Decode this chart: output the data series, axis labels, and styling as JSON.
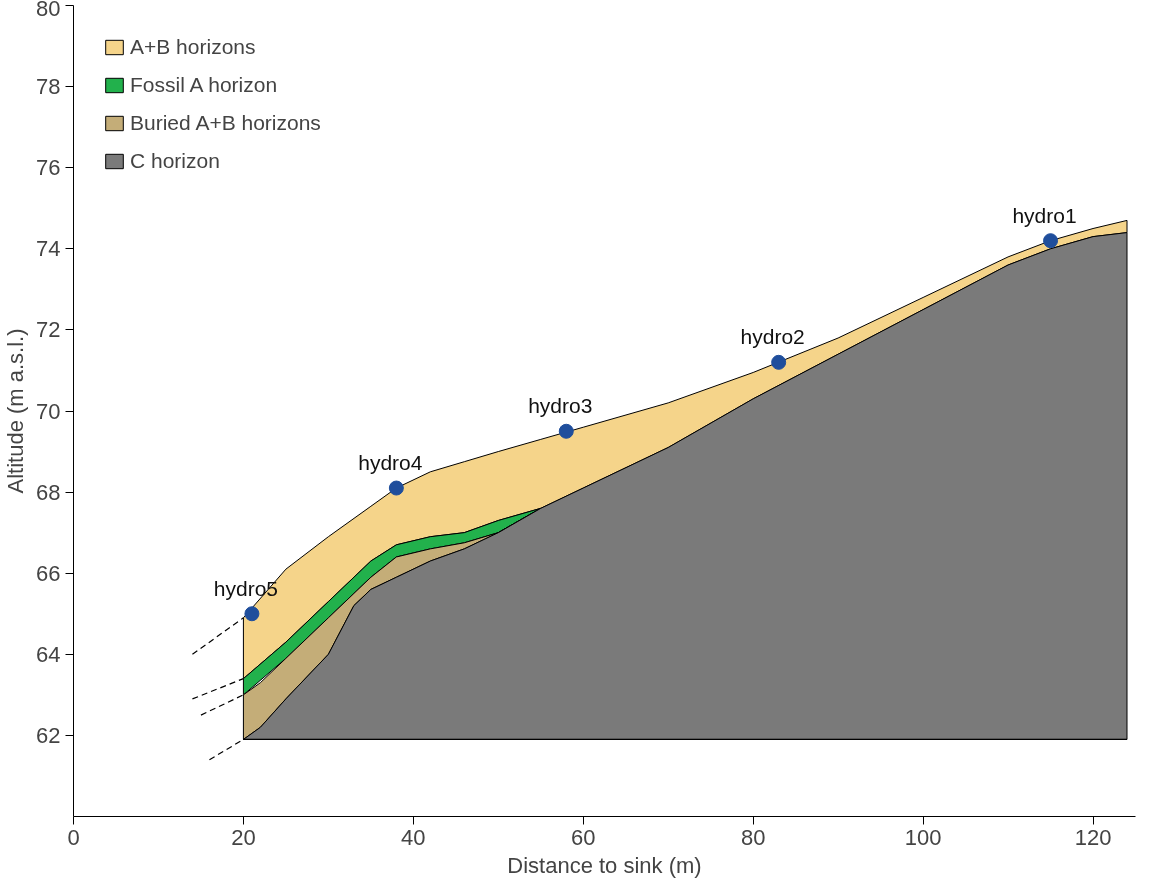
{
  "chart_data": {
    "type": "area",
    "xlabel": "Distance to sink (m)",
    "ylabel": "Altitude (m a.s.l.)",
    "xlim": [
      0,
      125
    ],
    "ylim": [
      60,
      80
    ],
    "xticks": [
      0,
      20,
      40,
      60,
      80,
      100,
      120
    ],
    "yticks": [
      62,
      64,
      66,
      68,
      70,
      72,
      74,
      76,
      78,
      80
    ],
    "grid": false,
    "legend": "top left",
    "series": [
      {
        "name": "A+B horizons",
        "color": "#f5d48a",
        "x": [
          20,
          25,
          30,
          35,
          38,
          42,
          46,
          50,
          55,
          60,
          70,
          80,
          90,
          100,
          110,
          115,
          120,
          124
        ],
        "values": [
          64.9,
          66.1,
          66.9,
          67.65,
          68.1,
          68.5,
          68.75,
          69.0,
          69.3,
          69.6,
          70.2,
          70.95,
          71.8,
          72.8,
          73.8,
          74.2,
          74.5,
          74.7
        ]
      },
      {
        "name": "Fossil A horizon",
        "color": "#22b14c",
        "x": [
          20,
          25,
          30,
          35,
          38,
          42,
          46,
          50,
          55
        ],
        "values": [
          63.4,
          64.3,
          65.3,
          66.3,
          66.7,
          66.9,
          67.0,
          67.3,
          67.6
        ]
      },
      {
        "name": "Buried A+B horizons",
        "color": "#c4ad78",
        "x": [
          20,
          22,
          25,
          30,
          33,
          35,
          38,
          42,
          46,
          50,
          55
        ],
        "values": [
          63.0,
          63.3,
          63.9,
          64.9,
          65.5,
          65.9,
          66.4,
          66.6,
          66.75,
          67.0,
          67.6
        ]
      },
      {
        "name": "C horizon",
        "color": "#7a7a7a",
        "x": [
          20,
          22,
          25,
          30,
          33,
          35,
          38,
          42,
          46,
          50,
          55,
          60,
          70,
          80,
          90,
          100,
          110,
          115,
          120,
          124
        ],
        "values": [
          61.9,
          62.2,
          62.9,
          64.0,
          65.2,
          65.6,
          65.9,
          66.3,
          66.6,
          67.0,
          67.6,
          68.1,
          69.1,
          70.3,
          71.4,
          72.5,
          73.6,
          74.0,
          74.3,
          74.4
        ]
      },
      {
        "type": "line",
        "line_style": "solid",
        "color": "#000000",
        "x": [
          20,
          124
        ],
        "values": [
          61.9,
          61.9
        ]
      },
      {
        "type": "line",
        "line_style": "dashed",
        "color": "#000000",
        "x": [
          14,
          20
        ],
        "values": [
          64.0,
          64.9
        ]
      },
      {
        "type": "line",
        "line_style": "dashed",
        "color": "#000000",
        "x": [
          14,
          20
        ],
        "values": [
          62.9,
          63.4
        ]
      },
      {
        "type": "line",
        "line_style": "dashed",
        "color": "#000000",
        "x": [
          15,
          20
        ],
        "values": [
          62.5,
          63.0
        ]
      },
      {
        "type": "line",
        "line_style": "dashed",
        "color": "#000000",
        "x": [
          16,
          20
        ],
        "values": [
          61.4,
          61.9
        ]
      },
      {
        "type": "scatter",
        "marker": "circle",
        "color": "#1f4e9c",
        "x": [
          115,
          83,
          58,
          38,
          21
        ],
        "values": [
          74.2,
          71.2,
          69.5,
          68.1,
          65.0
        ]
      }
    ],
    "annotations": [
      {
        "text": "hydro1",
        "x": 115,
        "y": 74.2
      },
      {
        "text": "hydro2",
        "x": 83,
        "y": 71.2
      },
      {
        "text": "hydro3",
        "x": 58,
        "y": 69.5
      },
      {
        "text": "hydro4",
        "x": 38,
        "y": 68.1
      },
      {
        "text": "hydro5",
        "x": 21,
        "y": 65.0
      }
    ]
  }
}
